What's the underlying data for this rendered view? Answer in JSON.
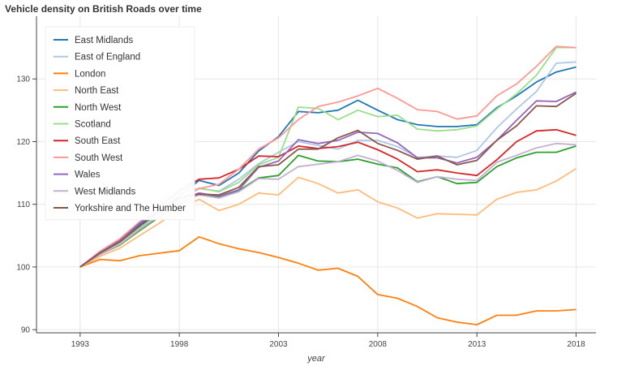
{
  "chart_data": {
    "type": "line",
    "title": "Vehicle density on British Roads over time",
    "xlabel": "year",
    "ylabel": "",
    "xlim": [
      1990.8,
      2019.0
    ],
    "ylim": [
      89.5,
      140.0
    ],
    "xticks": [
      1993,
      1998,
      2003,
      2008,
      2013,
      2018
    ],
    "yticks": [
      90,
      100,
      110,
      120,
      130
    ],
    "grid": true,
    "legend_position": "top-left",
    "x": [
      1993,
      1994,
      1995,
      1996,
      1997,
      1998,
      1999,
      2000,
      2001,
      2002,
      2003,
      2004,
      2005,
      2006,
      2007,
      2008,
      2009,
      2010,
      2011,
      2012,
      2013,
      2014,
      2015,
      2016,
      2017,
      2018
    ],
    "series": [
      {
        "name": "East Midlands",
        "color": "#1f77b4",
        "values": [
          100,
          102.0,
          104.0,
          106.7,
          109.0,
          111.3,
          113.8,
          113.0,
          115.0,
          118.5,
          120.8,
          124.8,
          124.6,
          125.0,
          126.6,
          125.0,
          123.5,
          122.7,
          122.4,
          122.4,
          122.7,
          125.4,
          127.3,
          129.5,
          131.1,
          131.9
        ]
      },
      {
        "name": "East of England",
        "color": "#aec7e8",
        "values": [
          100,
          102.0,
          103.8,
          106.2,
          108.5,
          110.6,
          112.5,
          112.1,
          114.0,
          116.5,
          118.3,
          120.0,
          119.4,
          118.8,
          120.2,
          120.2,
          119.2,
          117.5,
          117.7,
          117.5,
          118.6,
          122.2,
          125.2,
          128.0,
          132.5,
          132.7
        ]
      },
      {
        "name": "London",
        "color": "#ff7f0e",
        "values": [
          100,
          101.2,
          101.0,
          101.8,
          102.2,
          102.6,
          104.8,
          103.7,
          102.9,
          102.3,
          101.5,
          100.6,
          99.5,
          99.8,
          98.5,
          95.6,
          95.0,
          93.7,
          91.9,
          91.2,
          90.8,
          92.3,
          92.3,
          93.0,
          93.0,
          93.2
        ]
      },
      {
        "name": "North East",
        "color": "#ffbb78",
        "values": [
          100,
          101.7,
          103.0,
          105.0,
          107.0,
          109.2,
          110.8,
          109.0,
          110.0,
          111.8,
          111.5,
          114.3,
          113.3,
          111.8,
          112.3,
          110.4,
          109.4,
          107.8,
          108.5,
          108.4,
          108.3,
          110.8,
          111.9,
          112.3,
          113.7,
          115.7
        ]
      },
      {
        "name": "North West",
        "color": "#2ca02c",
        "values": [
          100,
          102.0,
          103.5,
          105.8,
          108.0,
          110.0,
          111.6,
          111.2,
          112.2,
          114.2,
          114.6,
          117.8,
          116.9,
          116.8,
          117.2,
          116.4,
          115.8,
          113.6,
          114.4,
          113.3,
          113.5,
          116.0,
          117.4,
          118.3,
          118.3,
          119.3
        ]
      },
      {
        "name": "Scotland",
        "color": "#98df8a",
        "values": [
          100,
          102.0,
          103.8,
          106.3,
          108.7,
          110.8,
          112.6,
          112.0,
          113.5,
          116.3,
          117.5,
          125.5,
          125.3,
          123.5,
          125.0,
          124.0,
          124.2,
          122.0,
          121.7,
          121.9,
          122.5,
          125.2,
          127.6,
          130.6,
          135.0,
          135.0
        ]
      },
      {
        "name": "South East",
        "color": "#d62728",
        "values": [
          100,
          102.3,
          104.4,
          107.0,
          109.7,
          112.2,
          114.0,
          114.2,
          115.6,
          117.7,
          117.6,
          119.3,
          118.9,
          119.2,
          119.9,
          118.7,
          117.2,
          115.2,
          115.5,
          115.0,
          114.6,
          117.1,
          120.0,
          121.7,
          121.9,
          121.0
        ]
      },
      {
        "name": "South West",
        "color": "#ff9896",
        "values": [
          100,
          102.5,
          104.5,
          107.2,
          109.6,
          111.8,
          112.5,
          113.2,
          115.6,
          118.8,
          120.6,
          123.5,
          125.6,
          126.3,
          127.3,
          128.5,
          126.9,
          125.1,
          124.8,
          123.6,
          124.1,
          127.3,
          129.2,
          132.0,
          135.2,
          135.0
        ]
      },
      {
        "name": "Wales",
        "color": "#9467bd",
        "values": [
          100,
          102.3,
          104.2,
          107.0,
          109.0,
          110.8,
          111.8,
          111.3,
          112.3,
          115.9,
          116.9,
          120.3,
          119.7,
          120.2,
          121.5,
          121.3,
          119.8,
          117.4,
          117.4,
          116.6,
          117.5,
          120.2,
          123.4,
          126.5,
          126.4,
          127.9
        ]
      },
      {
        "name": "West Midlands",
        "color": "#c5b0d5",
        "values": [
          100,
          102.0,
          103.6,
          106.0,
          108.2,
          110.3,
          111.5,
          111.0,
          112.0,
          114.1,
          114.0,
          116.0,
          116.4,
          116.8,
          117.8,
          116.9,
          115.4,
          113.5,
          114.4,
          114.0,
          113.8,
          116.7,
          117.8,
          119.0,
          119.7,
          119.5
        ]
      },
      {
        "name": "Yorkshire and The Humber",
        "color": "#8c564b",
        "values": [
          100,
          102.2,
          104.0,
          106.5,
          108.8,
          111.0,
          111.6,
          111.5,
          112.7,
          116.0,
          116.3,
          118.8,
          118.8,
          120.6,
          121.8,
          119.7,
          118.6,
          117.2,
          117.7,
          116.3,
          117.0,
          120.2,
          122.5,
          125.7,
          125.6,
          127.7
        ]
      }
    ]
  }
}
